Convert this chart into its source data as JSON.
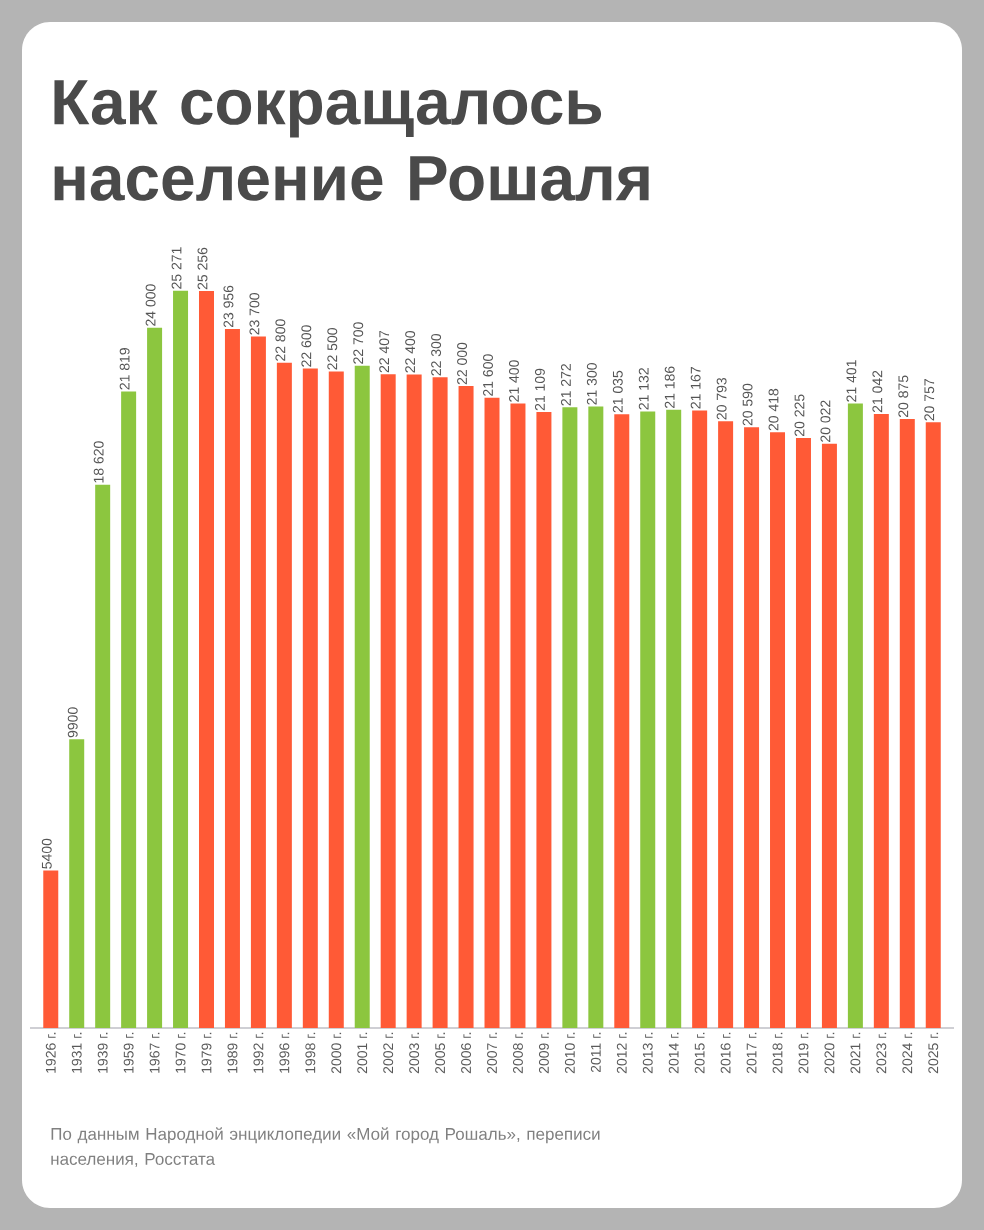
{
  "chart_data": {
    "type": "bar",
    "title": "Как сокращалось население Рошаля",
    "categories": [
      "1926 г.",
      "1931 г.",
      "1939 г.",
      "1959 г.",
      "1967 г.",
      "1970 г.",
      "1979 г.",
      "1989 г.",
      "1992 г.",
      "1996 г.",
      "1998 г.",
      "2000 г.",
      "2001 г.",
      "2002 г.",
      "2003 г.",
      "2005 г.",
      "2006 г.",
      "2007 г.",
      "2008 г.",
      "2009 г.",
      "2010 г.",
      "2011 г.",
      "2012 г.",
      "2013 г.",
      "2014 г.",
      "2015 г.",
      "2016 г.",
      "2017 г.",
      "2018 г.",
      "2019 г.",
      "2020 г.",
      "2021 г.",
      "2023 г.",
      "2024 г.",
      "2025 г."
    ],
    "values": [
      5400,
      9900,
      18620,
      21819,
      24000,
      25271,
      25256,
      23956,
      23700,
      22800,
      22600,
      22500,
      22700,
      22407,
      22400,
      22300,
      22000,
      21600,
      21400,
      21109,
      21272,
      21300,
      21035,
      21132,
      21186,
      21167,
      20793,
      20590,
      20418,
      20225,
      20022,
      21401,
      21042,
      20875,
      20757
    ],
    "value_labels": [
      "5400",
      "9900",
      "18 620",
      "21 819",
      "24 000",
      "25 271",
      "25 256",
      "23 956",
      "23 700",
      "22 800",
      "22 600",
      "22 500",
      "22 700",
      "22 407",
      "22 400",
      "22 300",
      "22 000",
      "21 600",
      "21 400",
      "21 109",
      "21 272",
      "21 300",
      "21 035",
      "21 132",
      "21 186",
      "21 167",
      "20 793",
      "20 590",
      "20 418",
      "20 225",
      "20 022",
      "21 401",
      "21 042",
      "20 875",
      "20 757"
    ],
    "colors": [
      "#ff5a36",
      "#8cc63f",
      "#8cc63f",
      "#8cc63f",
      "#8cc63f",
      "#8cc63f",
      "#ff5a36",
      "#ff5a36",
      "#ff5a36",
      "#ff5a36",
      "#ff5a36",
      "#ff5a36",
      "#8cc63f",
      "#ff5a36",
      "#ff5a36",
      "#ff5a36",
      "#ff5a36",
      "#ff5a36",
      "#ff5a36",
      "#ff5a36",
      "#8cc63f",
      "#8cc63f",
      "#ff5a36",
      "#8cc63f",
      "#8cc63f",
      "#ff5a36",
      "#ff5a36",
      "#ff5a36",
      "#ff5a36",
      "#ff5a36",
      "#ff5a36",
      "#8cc63f",
      "#ff5a36",
      "#ff5a36",
      "#ff5a36"
    ],
    "annotations": [
      "По данным Народной энциклопедии «Мой город Рошаль», переписи населения, Росстата"
    ]
  }
}
